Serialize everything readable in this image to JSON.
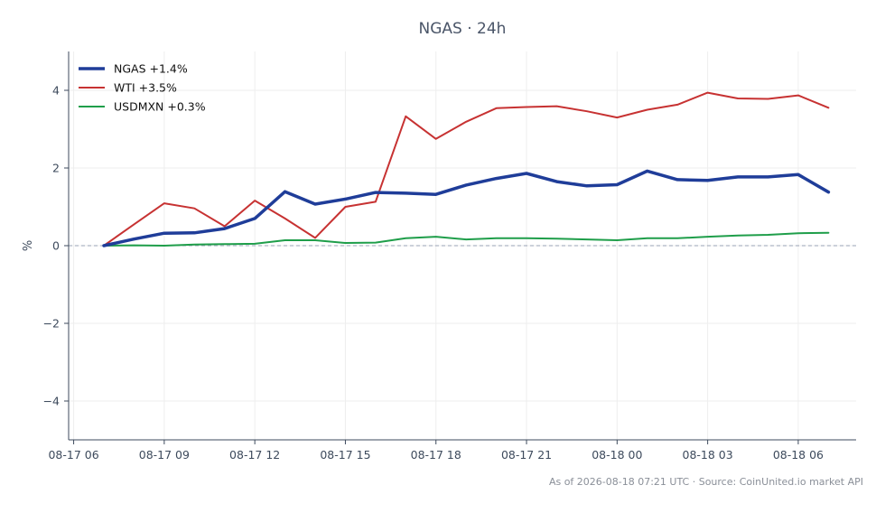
{
  "chart_data": {
    "type": "line",
    "title": "NGAS · 24h",
    "xlabel": "",
    "ylabel": "%",
    "x": [
      "08-17 07",
      "08-17 08",
      "08-17 09",
      "08-17 10",
      "08-17 11",
      "08-17 12",
      "08-17 13",
      "08-17 14",
      "08-17 15",
      "08-17 16",
      "08-17 17",
      "08-17 18",
      "08-17 19",
      "08-17 20",
      "08-17 21",
      "08-17 22",
      "08-17 23",
      "08-18 00",
      "08-18 01",
      "08-18 02",
      "08-18 03",
      "08-18 04",
      "08-18 05",
      "08-18 06",
      "08-18 07"
    ],
    "x_ticks": [
      "08-17 06",
      "08-17 09",
      "08-17 12",
      "08-17 15",
      "08-17 18",
      "08-17 21",
      "08-18 00",
      "08-18 03",
      "08-18 06"
    ],
    "xlim": [
      "08-17 05:50",
      "08-18 07:55"
    ],
    "ylim": [
      -5,
      5
    ],
    "y_ticks": [
      4,
      2,
      0,
      -2,
      -4
    ],
    "y_tick_labels": [
      "4",
      "2",
      "0",
      "−2",
      "−4"
    ],
    "grid": true,
    "legend_position": "top-left",
    "baseline": 0,
    "series": [
      {
        "name": "NGAS +1.4%",
        "color": "#1f3d99",
        "values": [
          0.0,
          0.17,
          0.32,
          0.33,
          0.44,
          0.7,
          1.39,
          1.07,
          1.2,
          1.37,
          1.35,
          1.32,
          1.56,
          1.73,
          1.86,
          1.65,
          1.54,
          1.57,
          1.92,
          1.7,
          1.68,
          1.77,
          1.77,
          1.83,
          1.38
        ]
      },
      {
        "name": "WTI +3.5%",
        "color": "#c73232",
        "values": [
          0.0,
          0.55,
          1.09,
          0.96,
          0.5,
          1.16,
          0.7,
          0.2,
          1.0,
          1.13,
          3.33,
          2.75,
          3.19,
          3.54,
          3.57,
          3.59,
          3.46,
          3.3,
          3.5,
          3.63,
          3.94,
          3.79,
          3.78,
          3.87,
          3.55
        ]
      },
      {
        "name": "USDMXN +0.3%",
        "color": "#1f9e4a",
        "values": [
          0.0,
          0.01,
          0.0,
          0.03,
          0.04,
          0.05,
          0.14,
          0.14,
          0.07,
          0.08,
          0.19,
          0.23,
          0.16,
          0.19,
          0.19,
          0.18,
          0.16,
          0.14,
          0.19,
          0.19,
          0.23,
          0.26,
          0.28,
          0.32,
          0.33
        ]
      }
    ],
    "footer": "As of 2026-08-18 07:21 UTC · Source: CoinUnited.io market API"
  }
}
